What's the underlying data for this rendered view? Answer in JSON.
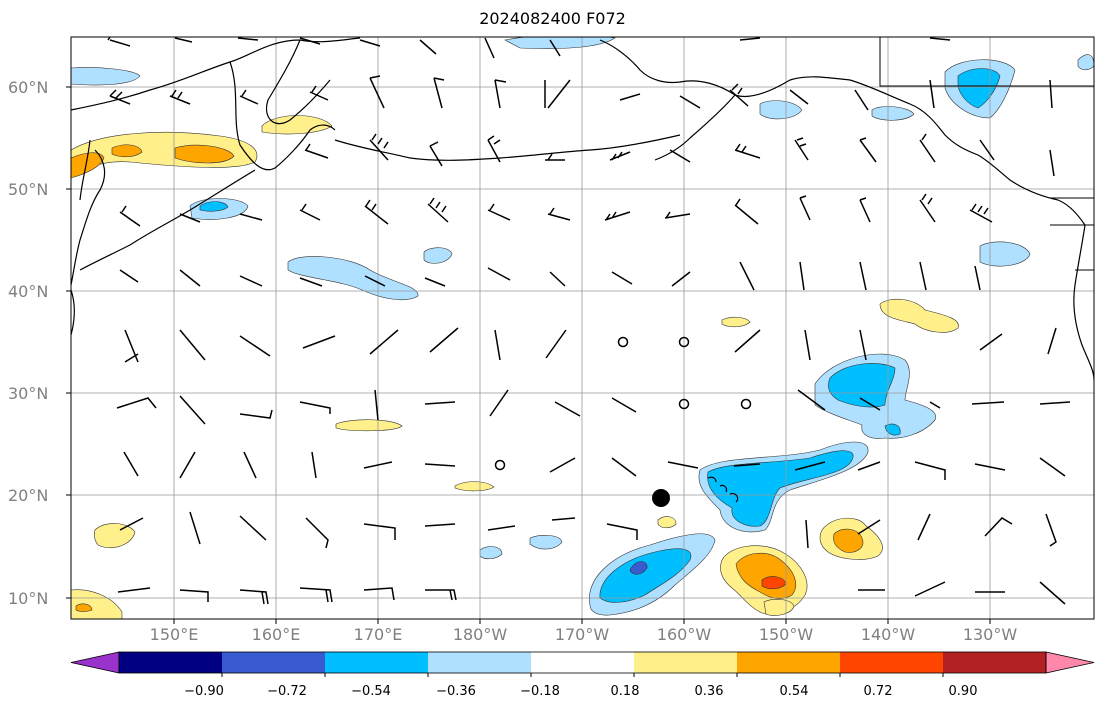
{
  "title": "2024082400 F072",
  "latitude_labels": [
    "60°N",
    "50°N",
    "40°N",
    "30°N",
    "20°N",
    "10°N"
  ],
  "longitude_labels": [
    "150°E",
    "160°E",
    "170°E",
    "180°W",
    "170°W",
    "160°W",
    "150°W",
    "140°W",
    "130°W"
  ],
  "colorbar": {
    "colors": [
      "#9933cc",
      "#000080",
      "#3a5bcf",
      "#00bfff",
      "#b0e0ff",
      "#ffffff",
      "#fff08c",
      "#ffa500",
      "#ff4500",
      "#b22222",
      "#ff88aa"
    ],
    "labels": [
      "−0.90",
      "−0.72",
      "−0.54",
      "−0.36",
      "−0.18",
      "0.18",
      "0.36",
      "0.54",
      "0.72",
      "0.90"
    ]
  }
}
